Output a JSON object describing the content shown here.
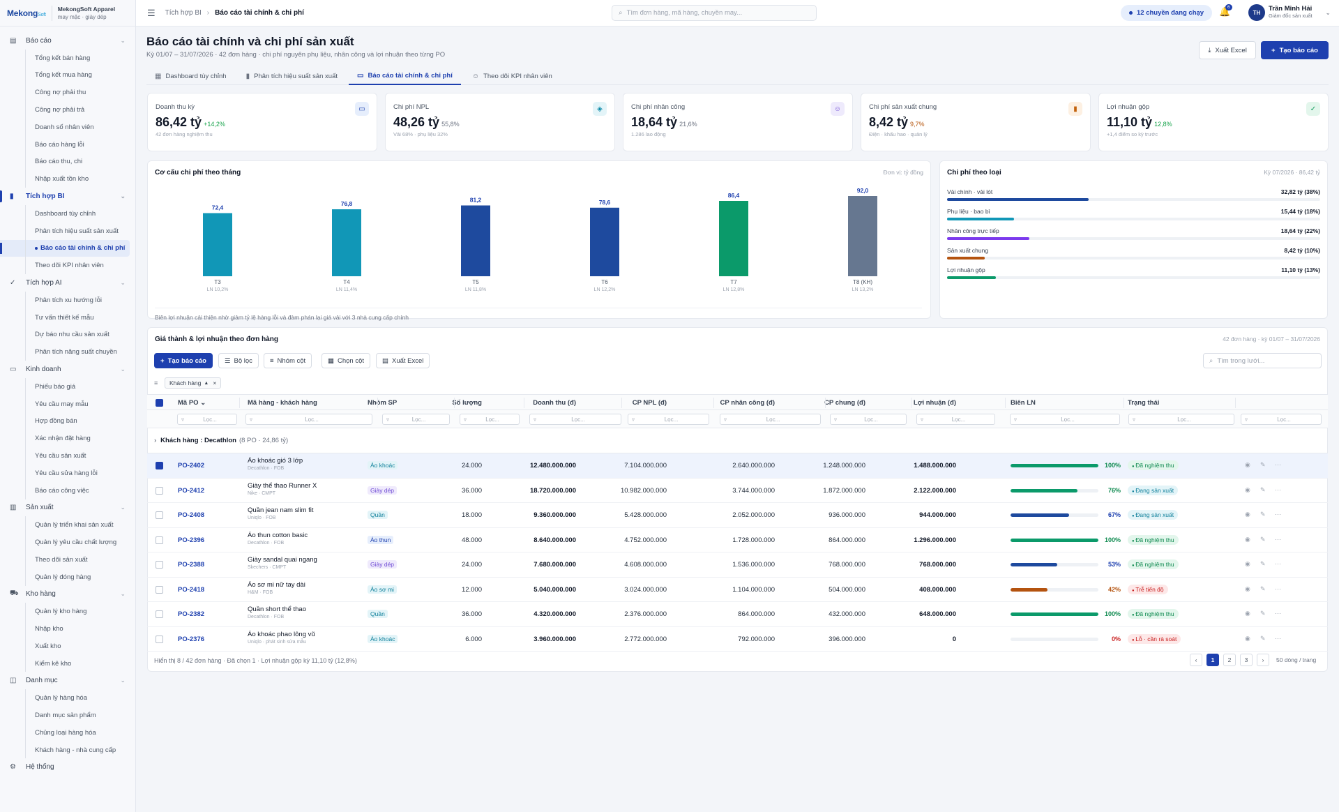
{
  "brand": {
    "logo": "Mekong",
    "logo_small": "Soft",
    "name": "MekongSoft Apparel",
    "sub": "may mặc · giày dép"
  },
  "sidebar": {
    "groups": [
      {
        "label": "Báo cáo",
        "icon": "document-icon",
        "items": [
          "Tổng kết bán hàng",
          "Tổng kết mua hàng",
          "Công nợ phải thu",
          "Công nợ phải trả",
          "Doanh số nhân viên",
          "Báo cáo hàng lỗi",
          "Báo cáo thu, chi",
          "Nhập xuất tồn kho"
        ]
      },
      {
        "label": "Tích hợp BI",
        "icon": "bar-chart-icon",
        "items": [
          "Dashboard tùy chỉnh",
          "Phân tích hiệu suất sản xuất",
          "Báo cáo tài chính & chi phí",
          "Theo dõi KPI nhân viên"
        ]
      },
      {
        "label": "Tích hợp AI",
        "icon": "check-circle-icon",
        "items": [
          "Phân tích xu hướng lỗi",
          "Tư vấn thiết kế mẫu",
          "Dự báo nhu cầu sản xuất",
          "Phân tích năng suất chuyền"
        ]
      },
      {
        "label": "Kinh doanh",
        "icon": "money-icon",
        "items": [
          "Phiếu báo giá",
          "Yêu cầu may mẫu",
          "Hợp đồng bán",
          "Xác nhận đặt hàng",
          "Yêu cầu sản xuất",
          "Yêu cầu sửa hàng lỗi",
          "Báo cáo công việc"
        ]
      },
      {
        "label": "Sản xuất",
        "icon": "factory-icon",
        "items": [
          "Quản lý triển khai sản xuất",
          "Quản lý yêu cầu chất lượng",
          "Theo dõi sản xuất",
          "Quản lý đóng hàng"
        ]
      },
      {
        "label": "Kho hàng",
        "icon": "truck-icon",
        "items": [
          "Quản lý kho hàng",
          "Nhập kho",
          "Xuất kho",
          "Kiểm kê kho"
        ]
      },
      {
        "label": "Danh mục",
        "icon": "box-icon",
        "items": [
          "Quản lý hàng hóa",
          "Danh mục sản phẩm",
          "Chủng loại hàng hóa",
          "Khách hàng - nhà cung cấp"
        ]
      }
    ],
    "system": "Hệ thống"
  },
  "topbar": {
    "crumb_parent": "Tích hợp BI",
    "crumb_current": "Báo cáo tài chính & chi phí",
    "search_placeholder": "Tìm đơn hàng, mã hàng, chuyền may...",
    "running": "12 chuyền đang chạy",
    "notif_count": "6",
    "avatar": "TH",
    "user_name": "Trần Minh Hải",
    "user_role": "Giám đốc sản xuất"
  },
  "page": {
    "title": "Báo cáo tài chính và chi phí sản xuất",
    "subtitle": "Kỳ 01/07 – 31/07/2026 · 42 đơn hàng · chi phí nguyên phụ liệu, nhân công và lợi nhuận theo từng PO",
    "btn_excel": "Xuất Excel",
    "btn_create": "Tạo báo cáo"
  },
  "tabs": [
    {
      "label": "Dashboard tùy chỉnh",
      "icon": "grid-icon"
    },
    {
      "label": "Phân tích hiệu suất sản xuất",
      "icon": "bar-chart-icon"
    },
    {
      "label": "Báo cáo tài chính & chi phí",
      "icon": "money-icon"
    },
    {
      "label": "Theo dõi KPI nhân viên",
      "icon": "users-icon"
    }
  ],
  "kpis": [
    {
      "label": "Doanh thu kỳ",
      "value": "86,42 tỷ",
      "delta": "+14,2%",
      "sub": "42 đơn hàng nghiệm thu",
      "delta_color": "#16a34a",
      "icon": "money-icon",
      "icon_bg": "#e6eefc",
      "icon_color": "#1e40af"
    },
    {
      "label": "Chi phí NPL",
      "value": "48,26 tỷ",
      "delta": "55,8%",
      "sub": "Vải 68% · phụ liệu 32%",
      "delta_color": "#6b7280",
      "icon": "cube-icon",
      "icon_bg": "#e3f4f8",
      "icon_color": "#0e8aa8"
    },
    {
      "label": "Chi phí nhân công",
      "value": "18,64 tỷ",
      "delta": "21,6%",
      "sub": "1.286 lao động",
      "delta_color": "#6b7280",
      "icon": "user-icon",
      "icon_bg": "#eeeafc",
      "icon_color": "#6d48d4"
    },
    {
      "label": "Chi phí sản xuất chung",
      "value": "8,42 tỷ",
      "delta": "9,7%",
      "sub": "Điện · khấu hao · quản lý",
      "delta_color": "#b45309",
      "icon": "bar-chart-icon",
      "icon_bg": "#fdf0e2",
      "icon_color": "#c2620c"
    },
    {
      "label": "Lợi nhuận gộp",
      "value": "11,10 tỷ",
      "delta": "12,8%",
      "sub": "+1,4 điểm so kỳ trước",
      "delta_color": "#16a34a",
      "icon": "check-circle-icon",
      "icon_bg": "#e3f6ec",
      "icon_color": "#0f9a5a"
    }
  ],
  "chart_panel": {
    "title": "Cơ cấu chi phí theo tháng",
    "unit": "Đơn vị: tỷ đồng",
    "note": "Biên lợi nhuận cải thiện nhờ giảm tỷ lệ hàng lỗi và đàm phán lại giá vải với 3 nhà cung cấp chính"
  },
  "chart_data": {
    "type": "bar",
    "categories": [
      "T3",
      "T4",
      "T5",
      "T6",
      "T7",
      "T8 (KH)"
    ],
    "values": [
      72.4,
      76.8,
      81.2,
      78.6,
      86.4,
      92.0
    ],
    "value_labels": [
      "72,4",
      "76,8",
      "81,2",
      "78,6",
      "86,4",
      "92,0"
    ],
    "margins": [
      "LN 10,2%",
      "LN 11,4%",
      "LN 11,8%",
      "LN 12,2%",
      "LN 12,8%",
      "LN 13,2%"
    ],
    "colors": [
      "#1197b7",
      "#1197b7",
      "#1e4a9e",
      "#1e4a9e",
      "#0b9a6a",
      "#667790"
    ],
    "ylim": [
      0,
      100
    ]
  },
  "cost_panel": {
    "title": "Chi phí theo loại",
    "meta": "Kỳ 07/2026 · 86,42 tỷ",
    "rows": [
      {
        "label": "Vải chính · vải lót",
        "value": "32,82 tỷ (38%)",
        "pct": 38,
        "color": "#1e4a9e"
      },
      {
        "label": "Phụ liệu · bao bì",
        "value": "15,44 tỷ (18%)",
        "pct": 18,
        "color": "#1197b7"
      },
      {
        "label": "Nhân công trực tiếp",
        "value": "18,64 tỷ (22%)",
        "pct": 22,
        "color": "#7c3aed"
      },
      {
        "label": "Sản xuất chung",
        "value": "8,42 tỷ (10%)",
        "pct": 10,
        "color": "#b4530f"
      },
      {
        "label": "Lợi nhuận gộp",
        "value": "11,10 tỷ (13%)",
        "pct": 13,
        "color": "#0b9a6a"
      }
    ]
  },
  "table": {
    "title": "Giá thành & lợi nhuận theo đơn hàng",
    "meta": "42 đơn hàng · kỳ 01/07 – 31/07/2026",
    "toolbar": {
      "create": "Tạo báo cáo",
      "filter": "Bộ lọc",
      "group": "Nhóm cột",
      "columns": "Chọn cột",
      "export": "Xuất Excel",
      "search": "Tìm trong lưới..."
    },
    "group_chip": "Khách hàng",
    "filter_placeholder": "Lọc...",
    "columns": [
      "Mã PO",
      "Mã hàng - khách hàng",
      "Nhóm SP",
      "Số lượng",
      "Doanh thu (đ)",
      "CP NPL (đ)",
      "CP nhân công (đ)",
      "CP chung (đ)",
      "Lợi nhuận (đ)",
      "Biên LN",
      "Trạng thái"
    ],
    "group_label": "Khách hàng",
    "group_value": "Decathlon",
    "group_meta": "(8 PO · 24,86 tỷ)",
    "rows": [
      {
        "po": "PO-2402",
        "name": "Áo khoác gió 3 lớp",
        "sub": "Decathlon · FOB",
        "group": "Áo khoác",
        "qty": "24.000",
        "rev": "12.480.000.000",
        "npl": "7.104.000.000",
        "labor": "2.640.000.000",
        "common": "1.248.000.000",
        "profit": "1.488.000.000",
        "margin_pct": 100,
        "margin": "100%",
        "status": "Đã nghiệm thu",
        "selected": true
      },
      {
        "po": "PO-2412",
        "name": "Giày thể thao Runner X",
        "sub": "Nike · CMPT",
        "group": "Giày dép",
        "qty": "36.000",
        "rev": "18.720.000.000",
        "npl": "10.982.000.000",
        "labor": "3.744.000.000",
        "common": "1.872.000.000",
        "profit": "2.122.000.000",
        "margin_pct": 76,
        "margin": "76%",
        "status": "Đang sản xuất",
        "selected": false
      },
      {
        "po": "PO-2408",
        "name": "Quần jean nam slim fit",
        "sub": "Uniqlo · FOB",
        "group": "Quần",
        "qty": "18.000",
        "rev": "9.360.000.000",
        "npl": "5.428.000.000",
        "labor": "2.052.000.000",
        "common": "936.000.000",
        "profit": "944.000.000",
        "margin_pct": 67,
        "margin": "67%",
        "status": "Đang sản xuất",
        "selected": false
      },
      {
        "po": "PO-2396",
        "name": "Áo thun cotton basic",
        "sub": "Decathlon · FOB",
        "group": "Áo thun",
        "qty": "48.000",
        "rev": "8.640.000.000",
        "npl": "4.752.000.000",
        "labor": "1.728.000.000",
        "common": "864.000.000",
        "profit": "1.296.000.000",
        "margin_pct": 100,
        "margin": "100%",
        "status": "Đã nghiệm thu",
        "selected": false
      },
      {
        "po": "PO-2388",
        "name": "Giày sandal quai ngang",
        "sub": "Skechers · CMPT",
        "group": "Giày dép",
        "qty": "24.000",
        "rev": "7.680.000.000",
        "npl": "4.608.000.000",
        "labor": "1.536.000.000",
        "common": "768.000.000",
        "profit": "768.000.000",
        "margin_pct": 53,
        "margin": "53%",
        "status": "Đã nghiệm thu",
        "selected": false
      },
      {
        "po": "PO-2418",
        "name": "Áo sơ mi nữ tay dài",
        "sub": "H&M · FOB",
        "group": "Áo sơ mi",
        "qty": "12.000",
        "rev": "5.040.000.000",
        "npl": "3.024.000.000",
        "labor": "1.104.000.000",
        "common": "504.000.000",
        "profit": "408.000.000",
        "margin_pct": 42,
        "margin": "42%",
        "status": "Trễ tiến độ",
        "selected": false
      },
      {
        "po": "PO-2382",
        "name": "Quần short thể thao",
        "sub": "Decathlon · FOB",
        "group": "Quần",
        "qty": "36.000",
        "rev": "4.320.000.000",
        "npl": "2.376.000.000",
        "labor": "864.000.000",
        "common": "432.000.000",
        "profit": "648.000.000",
        "margin_pct": 100,
        "margin": "100%",
        "status": "Đã nghiệm thu",
        "selected": false
      },
      {
        "po": "PO-2376",
        "name": "Áo khoác phao lông vũ",
        "sub": "Uniqlo · phát sinh sửa mẫu",
        "group": "Áo khoác",
        "qty": "6.000",
        "rev": "3.960.000.000",
        "npl": "2.772.000.000",
        "labor": "792.000.000",
        "common": "396.000.000",
        "profit": "0",
        "margin_pct": 0,
        "margin": "0%",
        "status": "Lỗ · cần rà soát",
        "selected": false
      }
    ],
    "footer": "Hiển thị 8 / 42 đơn hàng · Đã chọn 1 · Lợi nhuận gộp kỳ 11,10 tỷ (12,8%)",
    "pages": [
      "‹",
      "1",
      "2",
      "3",
      "›"
    ],
    "per_page": "50 dòng / trang"
  }
}
